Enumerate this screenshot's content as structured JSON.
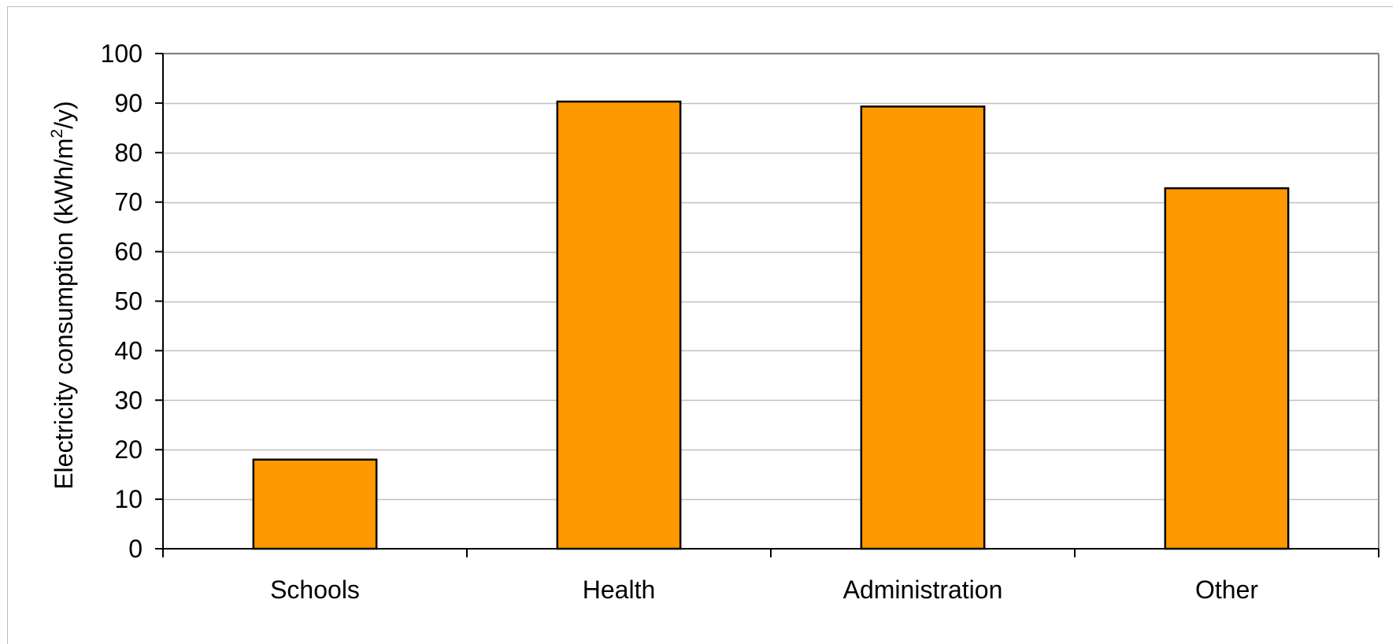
{
  "chart_data": {
    "type": "bar",
    "title": "",
    "xlabel": "",
    "ylabel": {
      "prefix": "Electricity consumption (kWh/m",
      "superscript": "2",
      "suffix": "/y)"
    },
    "categories": [
      "Schools",
      "Health",
      "Administration",
      "Other"
    ],
    "values": [
      18,
      90.3,
      89.3,
      72.8
    ],
    "ylim": [
      0,
      100
    ],
    "yticks": [
      0,
      10,
      20,
      30,
      40,
      50,
      60,
      70,
      80,
      90,
      100
    ],
    "grid": true,
    "legend": "none",
    "colors": {
      "bar_fill": "#ff9900",
      "bar_stroke": "#000000",
      "grid": "#c0c0c0",
      "plot_border": "#808080",
      "axis": "#000000"
    }
  }
}
